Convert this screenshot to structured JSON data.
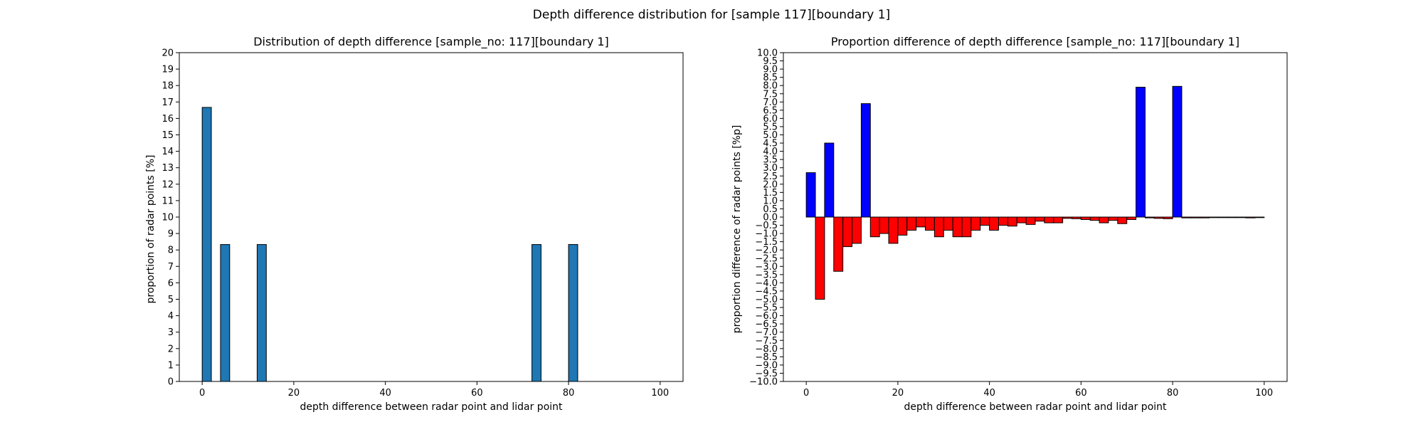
{
  "figure": {
    "suptitle": "Depth difference distribution for [sample 117][boundary 1]"
  },
  "chart_data": [
    {
      "type": "bar",
      "title": "Distribution of depth difference [sample_no: 117][boundary 1]",
      "xlabel": "depth difference between radar point and lidar point",
      "ylabel": "proportion of radar points [%]",
      "xlim": [
        -5,
        105
      ],
      "ylim": [
        0,
        20
      ],
      "xticks": [
        0,
        20,
        40,
        60,
        80,
        100
      ],
      "yticks": [
        0,
        1,
        2,
        3,
        4,
        5,
        6,
        7,
        8,
        9,
        10,
        11,
        12,
        13,
        14,
        15,
        16,
        17,
        18,
        19,
        20
      ],
      "bar_width": 2,
      "bar_color": "#1f77b4",
      "bar_edge": "#000000",
      "x": [
        1,
        5,
        13,
        73,
        81
      ],
      "values": [
        16.67,
        8.33,
        8.33,
        8.33,
        8.33
      ]
    },
    {
      "type": "bar",
      "title": "Proportion difference of depth difference [sample_no: 117][boundary 1]",
      "xlabel": "depth difference between radar point and lidar point",
      "ylabel": "proportion difference of radar points [%p]",
      "xlim": [
        -5,
        105
      ],
      "ylim": [
        -10,
        10
      ],
      "xticks": [
        0,
        20,
        40,
        60,
        80,
        100
      ],
      "yticks": [
        -10,
        -9.5,
        -9,
        -8.5,
        -8,
        -7.5,
        -7,
        -6.5,
        -6,
        -5.5,
        -5,
        -4.5,
        -4,
        -3.5,
        -3,
        -2.5,
        -2,
        -1.5,
        -1,
        -0.5,
        0,
        0.5,
        1,
        1.5,
        2,
        2.5,
        3,
        3.5,
        4,
        4.5,
        5,
        5.5,
        6,
        6.5,
        7,
        7.5,
        8,
        8.5,
        9,
        9.5,
        10
      ],
      "bar_width": 2,
      "positive_color": "#0000ff",
      "negative_color": "#ff0000",
      "bar_edge": "#000000",
      "x": [
        1,
        3,
        5,
        7,
        9,
        11,
        13,
        15,
        17,
        19,
        21,
        23,
        25,
        27,
        29,
        31,
        33,
        35,
        37,
        39,
        41,
        43,
        45,
        47,
        49,
        51,
        53,
        55,
        57,
        59,
        61,
        63,
        65,
        67,
        69,
        71,
        73,
        75,
        77,
        79,
        81,
        83,
        85,
        87,
        89,
        91,
        93,
        95,
        97,
        99
      ],
      "values": [
        2.7,
        -5.0,
        4.5,
        -3.3,
        -1.8,
        -1.6,
        6.9,
        -1.2,
        -1.0,
        -1.6,
        -1.1,
        -0.8,
        -0.6,
        -0.8,
        -1.2,
        -0.8,
        -1.2,
        -1.2,
        -0.8,
        -0.5,
        -0.8,
        -0.5,
        -0.55,
        -0.35,
        -0.45,
        -0.25,
        -0.35,
        -0.35,
        -0.08,
        -0.1,
        -0.15,
        -0.2,
        -0.35,
        -0.2,
        -0.4,
        -0.15,
        7.9,
        -0.05,
        -0.08,
        -0.1,
        7.95,
        -0.05,
        -0.05,
        -0.05,
        0,
        0,
        0,
        0,
        -0.05,
        0
      ]
    }
  ]
}
